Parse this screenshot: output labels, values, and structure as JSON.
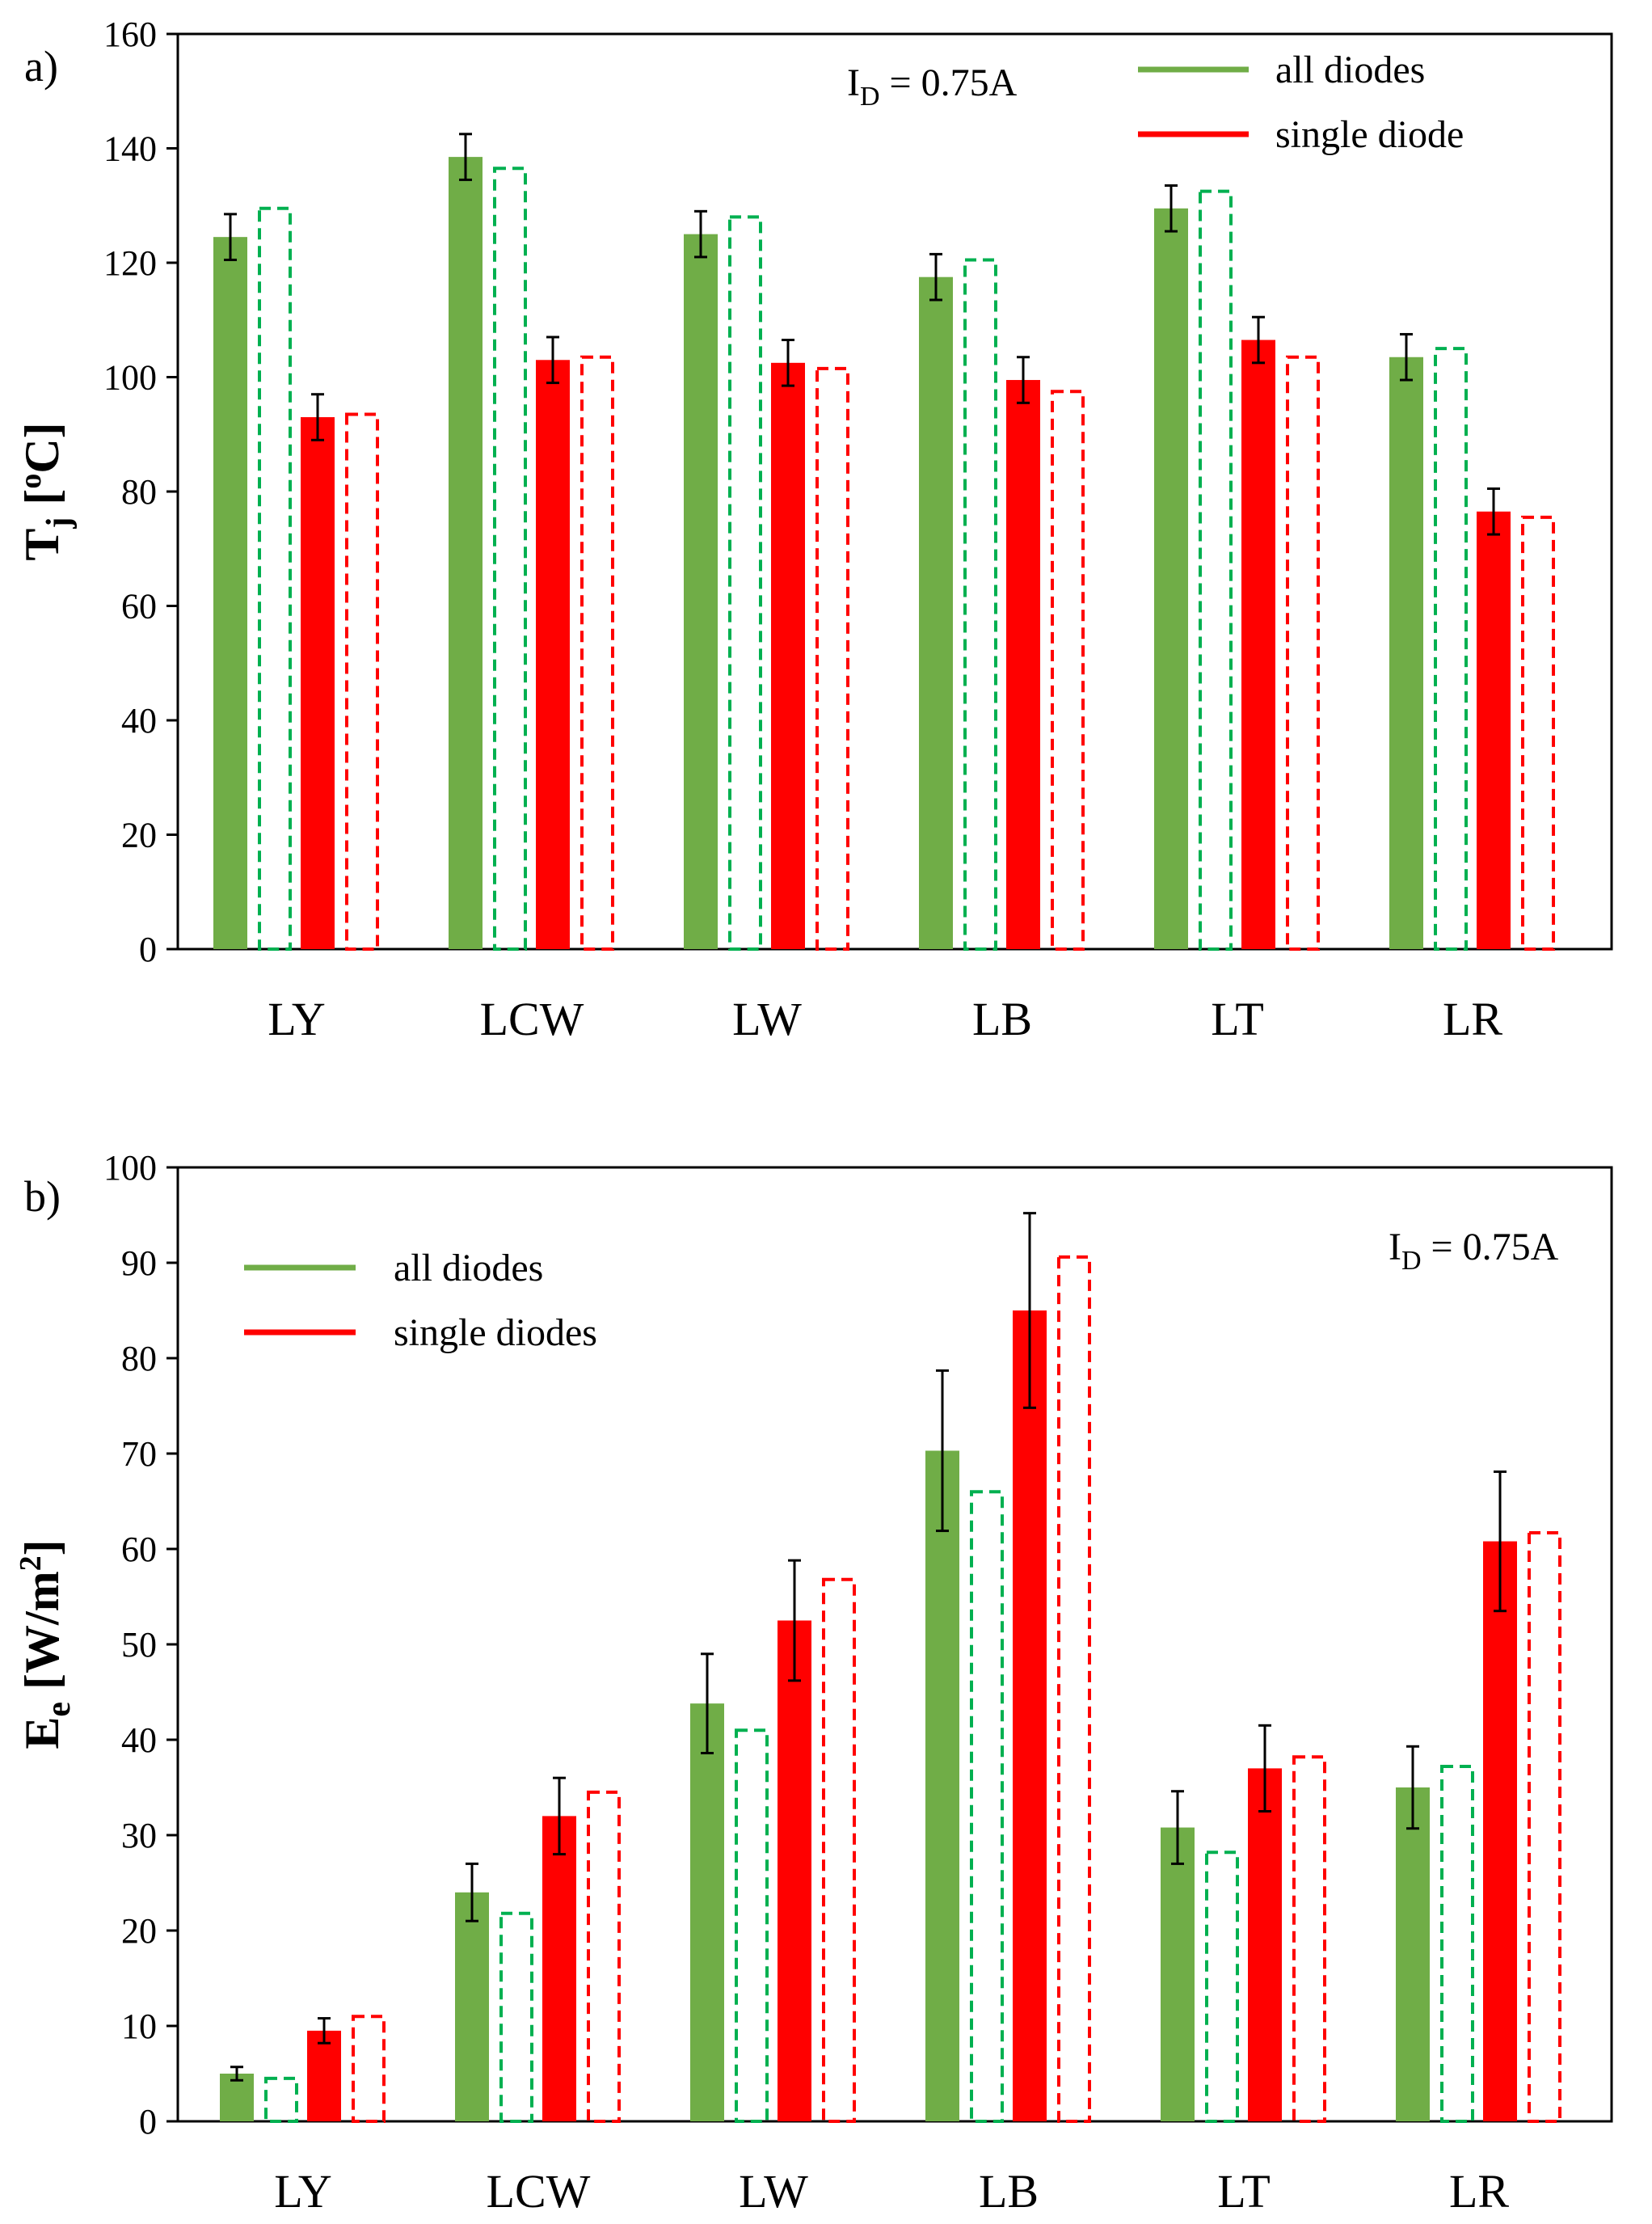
{
  "colors": {
    "green": "#70AD47",
    "green_dash": "#00B050",
    "red": "#FF0000",
    "axis": "#000000"
  },
  "chart_data": [
    {
      "type": "bar",
      "panel_label": "a)",
      "title": "",
      "ylabel_main": "T",
      "ylabel_sub": "j",
      "ylabel_pre": " [",
      "ylabel_sup": "o",
      "ylabel_unit": "C]",
      "annotation_main": "I",
      "annotation_sub": "D",
      "annotation_rest": " = 0.75A",
      "ylim": [
        0,
        160
      ],
      "yticks": [
        0,
        20,
        40,
        60,
        80,
        100,
        120,
        140,
        160
      ],
      "categories": [
        "LY",
        "LCW",
        "LW",
        "LB",
        "LT",
        "LR"
      ],
      "legend": [
        {
          "label": "all diodes",
          "color": "#70AD47"
        },
        {
          "label": "single diode",
          "color": "#FF0000"
        }
      ],
      "series": [
        {
          "name": "all diodes (measured)",
          "style": "solid",
          "color": "#70AD47",
          "values": [
            124.5,
            138.5,
            125,
            117.5,
            129.5,
            103.5
          ],
          "errors": [
            4,
            4,
            4,
            4,
            4,
            4
          ]
        },
        {
          "name": "all diodes (simulated)",
          "style": "dashed",
          "color": "#00B050",
          "values": [
            129.5,
            136.5,
            128,
            120.5,
            132.5,
            105
          ]
        },
        {
          "name": "single diode (measured)",
          "style": "solid",
          "color": "#FF0000",
          "values": [
            93,
            103,
            102.5,
            99.5,
            106.5,
            76.5
          ],
          "errors": [
            4,
            4,
            4,
            4,
            4,
            4
          ]
        },
        {
          "name": "single diode (simulated)",
          "style": "dashed",
          "color": "#FF0000",
          "values": [
            93.5,
            103.5,
            101.5,
            97.5,
            103.5,
            75.5
          ]
        }
      ]
    },
    {
      "type": "bar",
      "panel_label": "b)",
      "title": "",
      "ylabel_main": "E",
      "ylabel_sub": "e",
      "ylabel_pre": " [W/m",
      "ylabel_sup": "2",
      "ylabel_unit": "]",
      "annotation_main": "I",
      "annotation_sub": "D",
      "annotation_rest": " = 0.75A",
      "ylim": [
        0,
        100
      ],
      "yticks": [
        0,
        10,
        20,
        30,
        40,
        50,
        60,
        70,
        80,
        90,
        100
      ],
      "categories": [
        "LY",
        "LCW",
        "LW",
        "LB",
        "LT",
        "LR"
      ],
      "legend": [
        {
          "label": "all diodes",
          "color": "#70AD47"
        },
        {
          "label": "single diodes",
          "color": "#FF0000"
        }
      ],
      "series": [
        {
          "name": "all diodes (measured)",
          "style": "solid",
          "color": "#70AD47",
          "values": [
            5,
            24,
            43.8,
            70.3,
            30.8,
            35
          ],
          "errors": [
            0.7,
            3,
            5.2,
            8.4,
            3.8,
            4.3
          ]
        },
        {
          "name": "all diodes (simulated)",
          "style": "dashed",
          "color": "#00B050",
          "values": [
            4.5,
            21.8,
            41,
            66,
            28.2,
            37.2
          ]
        },
        {
          "name": "single diodes (measured)",
          "style": "solid",
          "color": "#FF0000",
          "values": [
            9.5,
            32,
            52.5,
            85,
            37,
            60.8
          ],
          "errors": [
            1.3,
            4,
            6.3,
            10.2,
            4.5,
            7.3
          ]
        },
        {
          "name": "single diodes (simulated)",
          "style": "dashed",
          "color": "#FF0000",
          "values": [
            11,
            34.5,
            56.8,
            90.6,
            38.2,
            61.7
          ]
        }
      ]
    }
  ]
}
